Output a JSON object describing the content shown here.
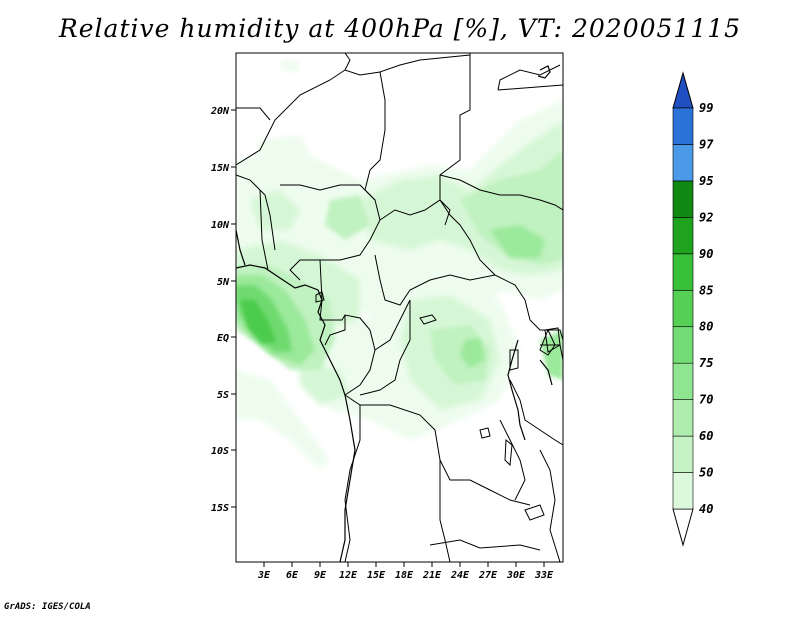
{
  "title": "Relative humidity at 400hPa [%], VT: 2020051115",
  "credit": "GrADS: IGES/COLA",
  "map": {
    "lon_ticks": [
      "3E",
      "6E",
      "9E",
      "12E",
      "15E",
      "18E",
      "21E",
      "24E",
      "27E",
      "30E",
      "33E"
    ],
    "lat_ticks": [
      "20N",
      "15N",
      "10N",
      "5N",
      "EQ",
      "5S",
      "10S",
      "15S"
    ]
  },
  "colorbar": {
    "levels": [
      "40",
      "50",
      "60",
      "70",
      "75",
      "80",
      "85",
      "90",
      "92",
      "95",
      "97",
      "99"
    ],
    "colors": [
      "#f0fff0",
      "#dcf9dc",
      "#c5f3c5",
      "#aeedae",
      "#90e590",
      "#74dc74",
      "#55d055",
      "#38c038",
      "#1fa31f",
      "#118811",
      "#4a9ae8",
      "#2a72d8",
      "#1f4fc0"
    ]
  },
  "chart_data": {
    "type": "heatmap",
    "title": "Relative humidity at 400hPa [%], VT: 2020051115",
    "variable": "Relative humidity",
    "level": "400hPa",
    "unit": "%",
    "valid_time": "2020051115",
    "lon_range": [
      0,
      35
    ],
    "lat_range": [
      -20,
      25
    ],
    "color_levels": [
      40,
      50,
      60,
      70,
      75,
      80,
      85,
      90,
      92,
      95,
      97,
      99
    ]
  }
}
